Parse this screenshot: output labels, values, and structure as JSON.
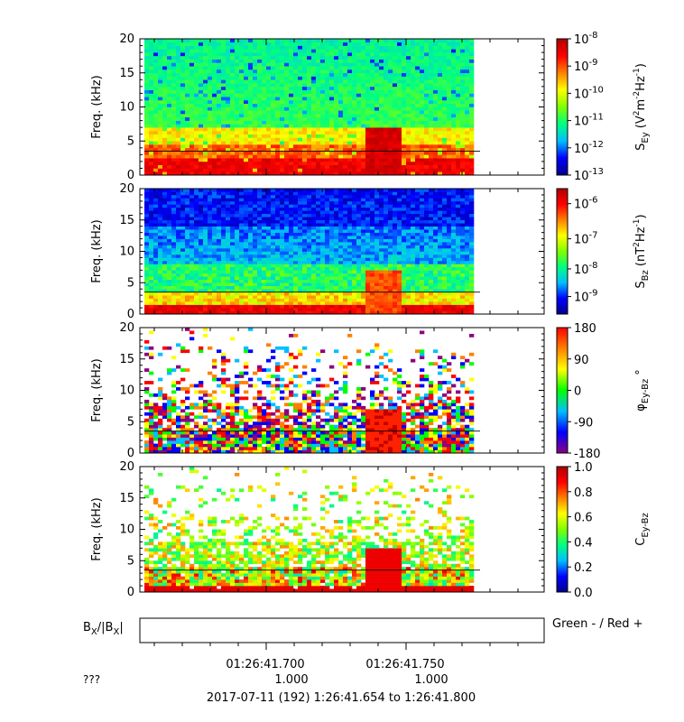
{
  "panels": [
    {
      "ylabel": "Freq. (kHz)",
      "yticks": [
        "0",
        "5",
        "10",
        "15",
        "20"
      ],
      "ylim": [
        0,
        20
      ],
      "cbar": {
        "label_main": "S",
        "label_sub": "Ey",
        "label_rest": " (V",
        "unit_tail": "m",
        "unit_tail2": "Hz",
        "unit_tail3": ")",
        "ticks": [
          {
            "base": "10",
            "exp": "-13"
          },
          {
            "base": "10",
            "exp": "-12"
          },
          {
            "base": "10",
            "exp": "-11"
          },
          {
            "base": "10",
            "exp": "-10"
          },
          {
            "base": "10",
            "exp": "-9"
          },
          {
            "base": "10",
            "exp": "-8"
          }
        ],
        "scale": "log",
        "range": [
          "1e-13",
          "1e-8"
        ]
      }
    },
    {
      "ylabel": "Freq. (kHz)",
      "yticks": [
        "0",
        "5",
        "10",
        "15",
        "20"
      ],
      "ylim": [
        0,
        20
      ],
      "cbar": {
        "label_main": "S",
        "label_sub": "Bz",
        "label_rest": " (nT",
        "unit_tail": "Hz",
        "unit_tail3": ")",
        "ticks": [
          {
            "base": "10",
            "exp": "-9"
          },
          {
            "base": "10",
            "exp": "-8"
          },
          {
            "base": "10",
            "exp": "-7"
          },
          {
            "base": "10",
            "exp": "-6"
          }
        ],
        "scale": "log",
        "range": [
          "3e-10",
          "2e-6"
        ]
      }
    },
    {
      "ylabel": "Freq. (kHz)",
      "yticks": [
        "0",
        "5",
        "10",
        "15",
        "20"
      ],
      "ylim": [
        0,
        20
      ],
      "cbar": {
        "label_main": "φ",
        "label_sub": "Ey-Bz",
        "label_rest": " °",
        "ticks": [
          "-180",
          "-90",
          "0",
          "90",
          "180"
        ],
        "scale": "linear",
        "range": [
          -180,
          180
        ]
      }
    },
    {
      "ylabel": "Freq. (kHz)",
      "yticks": [
        "0",
        "5",
        "10",
        "15",
        "20"
      ],
      "ylim": [
        0,
        20
      ],
      "cbar": {
        "label_main": "C",
        "label_sub": "Ey-Bz",
        "ticks": [
          "0.0",
          "0.2",
          "0.4",
          "0.6",
          "0.8",
          "1.0"
        ],
        "scale": "linear",
        "range": [
          0,
          1
        ]
      }
    }
  ],
  "bx_panel": {
    "label_left_a": "B",
    "label_left_sub_a": "X",
    "label_left_b": "/|B",
    "label_left_sub_b": "X",
    "label_left_c": "|",
    "legend_text": "Green - / Red +"
  },
  "xaxis": {
    "tick_labels": [
      "01:26:41.700",
      "01:26:41.750"
    ],
    "sub_labels": [
      "1.000",
      "1.000"
    ],
    "row_label": "???",
    "footer": "2017-07-11 (192) 1:26:41.654 to 1:26:41.800"
  },
  "colors": {
    "jet_stops": [
      "#00008b",
      "#0000ff",
      "#00bfff",
      "#00ff80",
      "#80ff00",
      "#ffff00",
      "#ff8000",
      "#ff0000",
      "#b00000"
    ],
    "phase_stops": [
      "#8b0080",
      "#0000ff",
      "#00bfff",
      "#00ff00",
      "#ffff00",
      "#ff8000",
      "#ff0000"
    ]
  },
  "chart_data": [
    {
      "type": "heatmap",
      "title": "",
      "xlabel": "",
      "ylabel": "Freq. (kHz)",
      "ylim": [
        0,
        20
      ],
      "x_range": [
        "01:26:41.654",
        "01:26:41.800"
      ],
      "colorbar": "S_Ey (V^2 m^-2 Hz^-1)",
      "color_range": [
        "1e-13",
        "1e-8"
      ],
      "features": {
        "hline_kHz": 3.5,
        "burst_time": "01:26:41.740",
        "burst_top_kHz": 6.5
      }
    },
    {
      "type": "heatmap",
      "title": "",
      "xlabel": "",
      "ylabel": "Freq. (kHz)",
      "ylim": [
        0,
        20
      ],
      "x_range": [
        "01:26:41.654",
        "01:26:41.800"
      ],
      "colorbar": "S_Bz (nT^2 Hz^-1)",
      "color_range": [
        "3e-10",
        "2e-6"
      ],
      "features": {
        "hline_kHz": 3.5,
        "burst_time": "01:26:41.740",
        "burst_top_kHz": 6.5
      }
    },
    {
      "type": "heatmap",
      "title": "",
      "xlabel": "",
      "ylabel": "Freq. (kHz)",
      "ylim": [
        0,
        20
      ],
      "x_range": [
        "01:26:41.654",
        "01:26:41.800"
      ],
      "colorbar": "phi_Ey-Bz (deg)",
      "color_range": [
        -180,
        180
      ],
      "features": {
        "hline_kHz": 3.5
      }
    },
    {
      "type": "heatmap",
      "title": "",
      "xlabel": "",
      "ylabel": "Freq. (kHz)",
      "ylim": [
        0,
        20
      ],
      "x_range": [
        "01:26:41.654",
        "01:26:41.800"
      ],
      "colorbar": "C_Ey-Bz",
      "color_range": [
        0,
        1
      ],
      "features": {
        "hline_kHz": 3.5,
        "burst_time": "01:26:41.740",
        "burst_top_kHz": 6.5
      }
    }
  ]
}
